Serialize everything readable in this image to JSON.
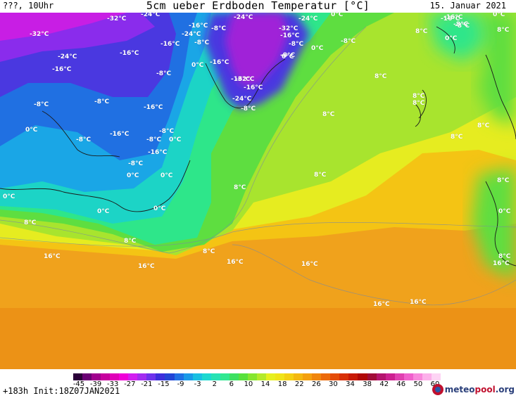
{
  "header": {
    "left": "???, 10Uhr",
    "title": "5cm ueber Erdboden Temperatur [°C]",
    "date": "15. Januar 2021"
  },
  "map_labels": [
    {
      "t": "-32°C"
    },
    {
      "t": "-32°C"
    },
    {
      "t": "-24°C"
    },
    {
      "t": "-24°C"
    },
    {
      "t": "-16°C"
    },
    {
      "t": "-24°C"
    },
    {
      "t": "-16°C"
    },
    {
      "t": "-8°C"
    },
    {
      "t": "-16°C"
    },
    {
      "t": "-16°C"
    },
    {
      "t": "-8°C"
    },
    {
      "t": "-8°C"
    },
    {
      "t": "-16°C"
    },
    {
      "t": "0°C"
    },
    {
      "t": "-8°C"
    },
    {
      "t": "-8°C"
    },
    {
      "t": "-16°C"
    },
    {
      "t": "-8°C"
    },
    {
      "t": "-8°C"
    },
    {
      "t": "-16°C"
    },
    {
      "t": "-8°C"
    },
    {
      "t": "-16°C"
    },
    {
      "t": "0°C"
    },
    {
      "t": "-16°C"
    },
    {
      "t": "-8°C"
    },
    {
      "t": "0°C"
    },
    {
      "t": "-8°C"
    },
    {
      "t": "0°C"
    },
    {
      "t": "0°C"
    },
    {
      "t": "0°C"
    },
    {
      "t": "0°C"
    },
    {
      "t": "0°C"
    },
    {
      "t": "8°C"
    },
    {
      "t": "8°C"
    },
    {
      "t": "8°C"
    },
    {
      "t": "16°C"
    },
    {
      "t": "16°C"
    },
    {
      "t": "-24°C"
    },
    {
      "t": "-32°C"
    },
    {
      "t": "-16°C"
    },
    {
      "t": "-8°C"
    },
    {
      "t": "-32°C"
    },
    {
      "t": "-24°C"
    },
    {
      "t": "-16°C"
    },
    {
      "t": "-8°C"
    },
    {
      "t": "-24°C"
    },
    {
      "t": "-16°C"
    },
    {
      "t": "0°C"
    },
    {
      "t": "0°C"
    },
    {
      "t": "-8°C"
    },
    {
      "t": "0°C"
    },
    {
      "t": "-8°C"
    },
    {
      "t": "8°C"
    },
    {
      "t": "8°C"
    },
    {
      "t": "8°C"
    },
    {
      "t": "8°C"
    },
    {
      "t": "8°C"
    },
    {
      "t": "8°C"
    },
    {
      "t": "16°C"
    },
    {
      "t": "16°C"
    },
    {
      "t": "16°C"
    },
    {
      "t": "16°C"
    },
    {
      "t": "0°C"
    },
    {
      "t": "-16°C"
    },
    {
      "t": "-8°C"
    },
    {
      "t": "0°C"
    },
    {
      "t": "8°C"
    },
    {
      "t": "8°C"
    },
    {
      "t": "8°C"
    },
    {
      "t": "8°C"
    },
    {
      "t": "8°C"
    },
    {
      "t": "0°C"
    },
    {
      "t": "8°C"
    },
    {
      "t": "16°C"
    }
  ],
  "colorbar": {
    "colors": [
      "#2a0038",
      "#6a0074",
      "#a0008e",
      "#c7009e",
      "#e000b8",
      "#f000d8",
      "#d21ef0",
      "#a22cf0",
      "#6e32ec",
      "#3c2edc",
      "#2244d6",
      "#2070e4",
      "#1a9ae8",
      "#18bfe2",
      "#1cd8d0",
      "#26e2b4",
      "#30e890",
      "#3ce060",
      "#58e13c",
      "#86e630",
      "#b4ea2c",
      "#e6f020",
      "#f0e418",
      "#f4d012",
      "#f4b810",
      "#f4a00e",
      "#f0860c",
      "#ec6a0a",
      "#e44c08",
      "#d83006",
      "#c81a06",
      "#b00808",
      "#a00c38",
      "#b4146e",
      "#cc2090",
      "#e040b0",
      "#f060cc",
      "#f888dc",
      "#fcb0ea",
      "#fdd4f4"
    ],
    "ticks": [
      "-45",
      "-39",
      "-33",
      "-27",
      "-21",
      "-15",
      "-9",
      "-3",
      "2",
      "6",
      "10",
      "14",
      "18",
      "22",
      "26",
      "30",
      "34",
      "38",
      "42",
      "46",
      "50",
      "60"
    ]
  },
  "footer": {
    "run": "+183h  Init:18Z07JAN2021",
    "logo_main": "meteo",
    "logo_accent": "pool",
    "logo_suffix": ".org"
  }
}
